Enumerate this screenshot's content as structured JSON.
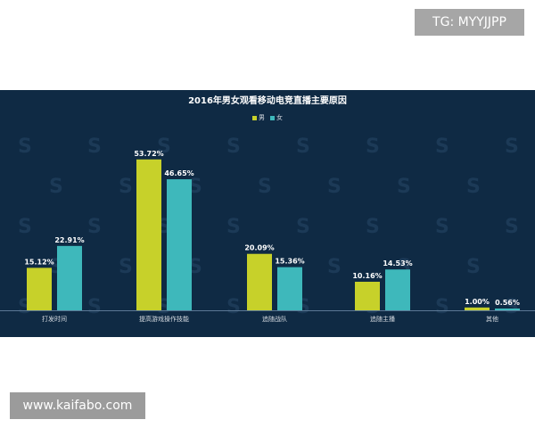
{
  "badges": {
    "tg": "TG: MYYJJPP",
    "site": "www.kaifabo.com"
  },
  "colors": {
    "male": "#c7d12a",
    "female": "#3eb8bb",
    "background": "#0f2a44"
  },
  "chart_data": {
    "type": "bar",
    "title": "2016年男女观看移动电竞直播主要原因",
    "categories": [
      "打发时间",
      "提高游戏操作技能",
      "追随战队",
      "追随主播",
      "其他"
    ],
    "series": [
      {
        "name": "男",
        "values": [
          15.12,
          53.72,
          20.09,
          10.16,
          1.0
        ],
        "labels": [
          "15.12%",
          "53.72%",
          "20.09%",
          "10.16%",
          "1.00%"
        ]
      },
      {
        "name": "女",
        "values": [
          22.91,
          46.65,
          15.36,
          14.53,
          0.56
        ],
        "labels": [
          "22.91%",
          "46.65%",
          "15.36%",
          "14.53%",
          "0.56%"
        ]
      }
    ],
    "ylim": [
      0,
      60
    ],
    "grid": false,
    "legend": "top-center",
    "xlabel": "",
    "ylabel": ""
  }
}
